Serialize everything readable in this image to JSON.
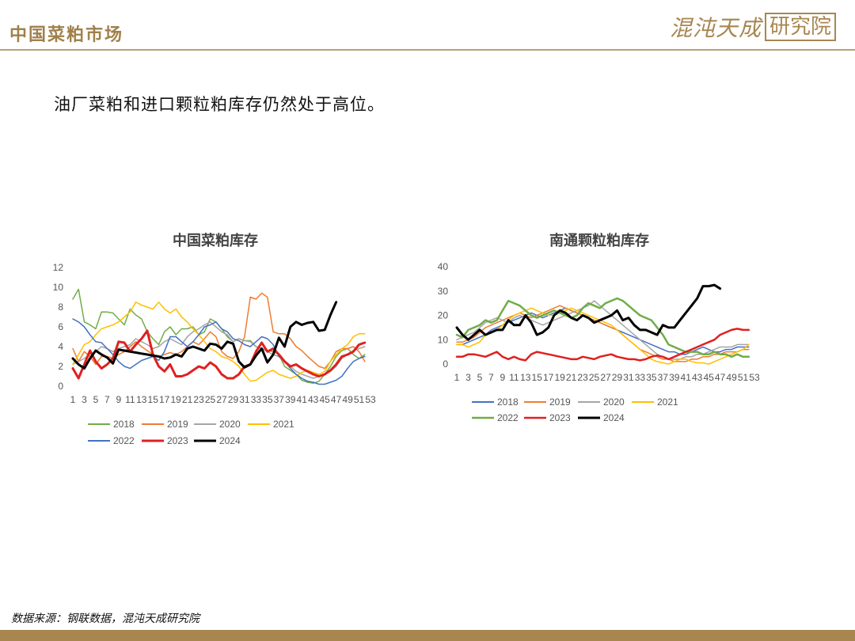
{
  "header": {
    "title": "中国菜粕市场"
  },
  "logo": {
    "text": "混沌天成",
    "boxed": "研究院"
  },
  "subtitle": "油厂菜粕和进口颗粒粕库存仍然处于高位。",
  "source": "数据来源：钢联数据，混沌天成研究院",
  "chart_data": [
    {
      "type": "line",
      "title": "中国菜粕库存",
      "ylim": [
        0,
        12
      ],
      "yticks": [
        0,
        2,
        4,
        6,
        8,
        10,
        12
      ],
      "xticks": [
        "1",
        "3",
        "5",
        "7",
        "9",
        "11",
        "13",
        "15",
        "17",
        "19",
        "21",
        "23",
        "25",
        "27",
        "29",
        "31",
        "33",
        "35",
        "37",
        "39",
        "41",
        "43",
        "45",
        "47",
        "49",
        "51",
        "53"
      ],
      "series": [
        {
          "name": "2018",
          "color": "#70ad47",
          "width": 1.5,
          "values": [
            8.8,
            9.8,
            6.5,
            6.2,
            5.8,
            7.5,
            7.5,
            7.4,
            6.8,
            6.2,
            7.8,
            7.2,
            6.8,
            5.5,
            4.8,
            4.2,
            5.5,
            6,
            5.2,
            5.8,
            5.8,
            6,
            5.2,
            5.5,
            6.8,
            6.5,
            5.8,
            5,
            4.5,
            4.8,
            4.6,
            4.6,
            4,
            3.8,
            3.6,
            3.5,
            3.2,
            2,
            1.6,
            1.2,
            0.6,
            0.4,
            0.3,
            0.5,
            1.2,
            2,
            3,
            3.6,
            3.8,
            3.2,
            2.8,
            3.2
          ]
        },
        {
          "name": "2019",
          "color": "#ed7d31",
          "width": 1.5,
          "values": [
            3.8,
            2.5,
            3.5,
            3,
            2.2,
            3,
            3,
            2.8,
            3.2,
            3.5,
            4,
            4.5,
            4,
            3.6,
            3.2,
            3,
            3.2,
            3.4,
            3.2,
            3.5,
            4,
            4.5,
            4.2,
            4.8,
            5.5,
            5,
            3.5,
            3,
            2.8,
            3.5,
            5,
            9,
            8.8,
            9.4,
            9,
            5.5,
            5.3,
            5.3,
            4.8,
            4,
            3.6,
            3,
            2.5,
            2,
            1.8,
            2.5,
            3.5,
            3.8,
            3.8,
            4,
            3.5,
            2.5
          ]
        },
        {
          "name": "2020",
          "color": "#a5a5a5",
          "width": 1.5,
          "values": [
            2.2,
            2.5,
            2.8,
            3.2,
            3.5,
            4,
            3.8,
            3.5,
            3.8,
            4,
            4.2,
            4.8,
            4.5,
            4.2,
            3.8,
            4,
            4.5,
            4.8,
            4.5,
            4.2,
            5,
            5.5,
            5.8,
            6.2,
            6.5,
            6,
            5.5,
            5.2,
            4.5,
            4.8,
            4.6,
            4.5,
            4,
            3.8,
            3.5,
            3.2,
            3,
            2.5,
            2,
            1.5,
            1.2,
            1,
            0.8,
            1,
            1.2,
            1.5,
            2,
            2.8,
            3.2,
            3.6,
            3.8,
            4
          ]
        },
        {
          "name": "2021",
          "color": "#ffc000",
          "width": 1.5,
          "values": [
            2.2,
            3.2,
            4.2,
            4.5,
            5.2,
            5.8,
            6,
            6.2,
            6.5,
            7,
            7.5,
            8.5,
            8.2,
            8,
            7.8,
            8.5,
            7.8,
            7.4,
            7.8,
            7,
            6.5,
            5.8,
            5.2,
            4.5,
            3.8,
            3.5,
            3,
            2.8,
            2.5,
            2,
            1.2,
            0.5,
            0.6,
            1,
            1.4,
            1.6,
            1.2,
            1,
            0.8,
            1,
            1.4,
            1.6,
            1.4,
            1.2,
            1.5,
            2.5,
            3.2,
            3.8,
            4.2,
            5,
            5.3,
            5.3
          ]
        },
        {
          "name": "2022",
          "color": "#4472c4",
          "width": 1.5,
          "values": [
            6.8,
            6.5,
            6,
            5.2,
            4.5,
            4.4,
            3.8,
            3.2,
            2.5,
            2,
            1.8,
            2.2,
            2.6,
            2.8,
            3,
            2.6,
            3.5,
            5,
            5,
            4.5,
            4,
            4.5,
            5.2,
            6,
            6.2,
            6.5,
            5.8,
            5.5,
            4.8,
            4.6,
            4.2,
            4,
            4.5,
            5,
            4.8,
            4.2,
            3,
            2.5,
            1.8,
            1.2,
            0.8,
            0.5,
            0.4,
            0.2,
            0.2,
            0.4,
            0.6,
            1,
            1.8,
            2.5,
            2.8,
            3
          ]
        },
        {
          "name": "2023",
          "color": "#e02020",
          "width": 3,
          "values": [
            1.8,
            0.8,
            2.2,
            3.6,
            2.5,
            1.8,
            2.2,
            2.8,
            4.5,
            4.4,
            3.5,
            4.2,
            4.8,
            5.6,
            3.2,
            2,
            1.5,
            2.2,
            1,
            1,
            1.2,
            1.6,
            2,
            1.8,
            2.4,
            2,
            1.2,
            0.8,
            0.8,
            1.2,
            2,
            2.2,
            3.5,
            4.4,
            3.5,
            3.8,
            3.2,
            2.5,
            2,
            2.2,
            1.8,
            1.5,
            1.2,
            1,
            1.2,
            1.6,
            2.2,
            3,
            3.2,
            3.5,
            4.2,
            4.4
          ]
        },
        {
          "name": "2024",
          "color": "#000000",
          "width": 3,
          "values": [
            2.8,
            2.2,
            1.8,
            2.8,
            3.6,
            3.2,
            2.9,
            2.3,
            3.7,
            3.6,
            3.5,
            3.4,
            3.3,
            3.2,
            3.1,
            3,
            2.8,
            2.9,
            3.2,
            3,
            3.8,
            4,
            3.8,
            3.6,
            4.3,
            4.2,
            3.8,
            4.5,
            4.3,
            2.5,
            1.9,
            2.2,
            3.1,
            3.8,
            2.4,
            3.2,
            4.9,
            4,
            6,
            6.5,
            6.2,
            6.4,
            6.5,
            5.6,
            5.7,
            7.2,
            8.5
          ]
        }
      ]
    },
    {
      "type": "line",
      "title": "南通颗粒粕库存",
      "ylim": [
        0,
        40
      ],
      "yticks": [
        0,
        10,
        20,
        30,
        40
      ],
      "xticks": [
        "1",
        "3",
        "5",
        "7",
        "9",
        "11",
        "13",
        "15",
        "17",
        "19",
        "21",
        "23",
        "25",
        "27",
        "29",
        "31",
        "33",
        "35",
        "37",
        "39",
        "41",
        "43",
        "45",
        "47",
        "49",
        "51",
        "53"
      ],
      "series": [
        {
          "name": "2018",
          "color": "#4472c4",
          "width": 1.5,
          "values": [
            8,
            8,
            9,
            10,
            11,
            12,
            14,
            15,
            16,
            17,
            18,
            19,
            20,
            21,
            20,
            19,
            20,
            21,
            22,
            23,
            22,
            21,
            20,
            19,
            18,
            17,
            16,
            15,
            14,
            13,
            12,
            11,
            10,
            9,
            8,
            7,
            6,
            5,
            5,
            4,
            4,
            5,
            6,
            7,
            6,
            5,
            5,
            6,
            6,
            7,
            7,
            7
          ]
        },
        {
          "name": "2019",
          "color": "#ed7d31",
          "width": 1.5,
          "values": [
            9,
            9,
            10,
            11,
            13,
            15,
            16,
            17,
            18,
            19,
            20,
            21,
            20,
            19,
            20,
            21,
            22,
            23,
            24,
            23,
            22,
            21,
            20,
            19,
            18,
            17,
            16,
            15,
            14,
            12,
            10,
            8,
            6,
            5,
            4,
            3,
            2,
            2,
            1,
            1,
            1,
            2,
            2,
            3,
            3,
            4,
            4,
            5,
            5,
            5,
            6,
            6
          ]
        },
        {
          "name": "2020",
          "color": "#a5a5a5",
          "width": 1.5,
          "values": [
            10,
            11,
            12,
            13,
            15,
            17,
            18,
            19,
            18,
            17,
            19,
            20,
            19,
            18,
            17,
            16,
            17,
            18,
            19,
            20,
            21,
            22,
            23,
            24,
            26,
            24,
            22,
            20,
            18,
            16,
            14,
            12,
            10,
            8,
            6,
            4,
            3,
            2,
            2,
            2,
            3,
            3,
            4,
            4,
            5,
            6,
            7,
            7,
            7,
            8,
            8,
            8
          ]
        },
        {
          "name": "2021",
          "color": "#ffc000",
          "width": 1.5,
          "values": [
            8,
            8,
            7,
            8,
            9,
            12,
            13,
            14,
            16,
            18,
            20,
            21,
            22,
            23,
            22,
            21,
            20,
            20,
            21,
            22,
            23,
            22,
            21,
            20,
            19,
            18,
            17,
            16,
            14,
            12,
            10,
            8,
            6,
            4,
            2,
            1,
            0.5,
            0,
            1,
            2,
            2,
            1,
            0.5,
            0.5,
            0,
            1,
            2,
            3,
            4,
            5,
            6,
            8
          ]
        },
        {
          "name": "2022",
          "color": "#70ad47",
          "width": 2.5,
          "values": [
            12,
            11,
            14,
            15,
            16,
            18,
            17,
            18,
            22,
            26,
            25,
            24,
            22,
            20,
            19,
            20,
            21,
            22,
            21,
            20,
            19,
            20,
            23,
            25,
            24,
            23,
            25,
            26,
            27,
            26,
            24,
            22,
            20,
            19,
            18,
            15,
            12,
            8,
            7,
            6,
            5,
            5,
            5,
            4,
            4,
            5,
            4,
            4,
            3,
            4,
            3,
            3
          ]
        },
        {
          "name": "2023",
          "color": "#e02020",
          "width": 2.5,
          "values": [
            3,
            3,
            4,
            4,
            3.5,
            3,
            4,
            5,
            3,
            2,
            3,
            2,
            1.5,
            4,
            5,
            4.5,
            4,
            3.5,
            3,
            2.5,
            2,
            2,
            3,
            2.5,
            2,
            3,
            3.5,
            4,
            3,
            2.5,
            2,
            2,
            1.5,
            2,
            3,
            3.5,
            3,
            2,
            3,
            4,
            5,
            6,
            7,
            8,
            9,
            10,
            12,
            13,
            14,
            14.5,
            14,
            14
          ]
        },
        {
          "name": "2024",
          "color": "#000000",
          "width": 3,
          "values": [
            15,
            12,
            10,
            12,
            14,
            12,
            13,
            14,
            14,
            18,
            16,
            16,
            20,
            17,
            12,
            13,
            15,
            20,
            22,
            21,
            19,
            18,
            20,
            19,
            17,
            18,
            19,
            20,
            22,
            18,
            19,
            16,
            14,
            14,
            13,
            12,
            16,
            15,
            15,
            18,
            21,
            24,
            27,
            32,
            32,
            32.5,
            31
          ]
        }
      ]
    }
  ]
}
